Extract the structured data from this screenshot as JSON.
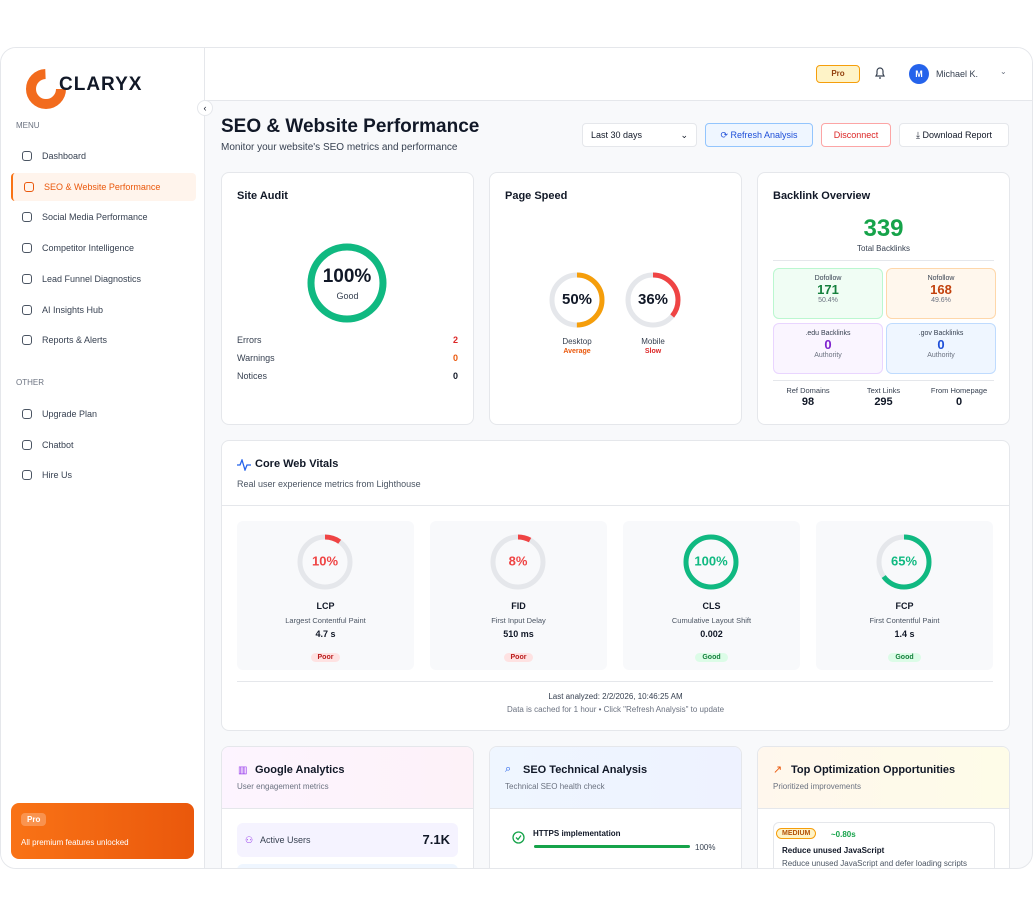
{
  "sidebar": {
    "logo": "CLARYX",
    "menu_label": "MENU",
    "menu": [
      "Dashboard",
      "SEO & Website Performance",
      "Social Media Performance",
      "Competitor Intelligence",
      "Lead Funnel Diagnostics",
      "AI Insights Hub",
      "Reports & Alerts"
    ],
    "active": 1,
    "other_label": "OTHER",
    "other": [
      "Upgrade Plan",
      "Chatbot",
      "Hire Us"
    ],
    "pro_badge": "Pro",
    "pro_text": "All premium features unlocked"
  },
  "topbar": {
    "pro": "Pro",
    "user_initial": "M",
    "user_name": "Michael K."
  },
  "header": {
    "title": "SEO & Website Performance",
    "subtitle": "Monitor your website's SEO metrics and performance",
    "range": "Last 30 days",
    "buttons": [
      "Refresh Analysis",
      "Disconnect",
      "Download Report"
    ]
  },
  "site_audit": {
    "title": "Site Audit",
    "score": {
      "value": 100,
      "label": "100%"
    },
    "color": "#10b981",
    "score_label": "Good",
    "rows": [
      {
        "name": "Errors",
        "value": 2,
        "color": "#dc2626"
      },
      {
        "name": "Warnings",
        "value": 0,
        "color": "#ea580c"
      },
      {
        "name": "Notices",
        "value": 0,
        "color": "#111827"
      }
    ]
  },
  "page_speed": {
    "title": "Page Speed",
    "gauges": [
      {
        "score": {
          "value": 50,
          "label": "50%"
        },
        "device": "Desktop",
        "status": "Average",
        "color": "#f59e0b",
        "status_color": "#ea580c"
      },
      {
        "score": {
          "value": 36,
          "label": "36%"
        },
        "device": "Mobile",
        "status": "Slow",
        "color": "#ef4444",
        "status_color": "#dc2626"
      }
    ]
  },
  "backlinks": {
    "title": "Backlink Overview",
    "total": 339,
    "total_label": "Total Backlinks",
    "boxes": [
      {
        "name": "Dofollow",
        "value": 171,
        "sub": "50.4%"
      },
      {
        "name": "Nofollow",
        "value": 168,
        "sub": "49.6%"
      },
      {
        "name": ".edu Backlinks",
        "value": 0,
        "sub": "Authority"
      },
      {
        "name": ".gov Backlinks",
        "value": 0,
        "sub": "Authority"
      }
    ],
    "stats": [
      {
        "name": "Ref Domains",
        "value": 98
      },
      {
        "name": "Text Links",
        "value": 295
      },
      {
        "name": "From Homepage",
        "value": 0
      }
    ]
  },
  "cwv": {
    "title": "Core Web Vitals",
    "subtitle": "Real user experience metrics from Lighthouse",
    "metrics": [
      {
        "score": {
          "value": 10,
          "label": "10%"
        },
        "color": "#ef4444",
        "name": "LCP",
        "desc": "Largest Contentful Paint",
        "value": "4.7 s",
        "status": "Poor"
      },
      {
        "score": {
          "value": 8,
          "label": "8%"
        },
        "color": "#ef4444",
        "name": "FID",
        "desc": "First Input Delay",
        "value": "510 ms",
        "status": "Poor"
      },
      {
        "score": {
          "value": 100,
          "label": "100%"
        },
        "color": "#10b981",
        "name": "CLS",
        "desc": "Cumulative Layout Shift",
        "value": "0.002",
        "status": "Good"
      },
      {
        "score": {
          "value": 65,
          "label": "65%"
        },
        "color": "#10b981",
        "name": "FCP",
        "desc": "First Contentful Paint",
        "value": "1.4 s",
        "status": "Good"
      }
    ],
    "last_analyzed": "Last analyzed: 2/2/2026, 10:46:25 AM",
    "note": "Data is cached for 1 hour • Click \"Refresh Analysis\" to update"
  },
  "analytics": {
    "title": "Google Analytics",
    "subtitle": "User engagement metrics",
    "rows": [
      {
        "name": "Active Users",
        "value": "7.1K"
      }
    ]
  },
  "seo_tech": {
    "title": "SEO Technical Analysis",
    "subtitle": "Technical SEO health check",
    "checks": [
      {
        "name": "HTTPS implementation",
        "progress": {
          "value": 100,
          "label": "100%"
        }
      }
    ]
  },
  "opportunities": {
    "title": "Top Optimization Opportunities",
    "subtitle": "Prioritized improvements",
    "items": [
      {
        "impact": "MEDIUM",
        "saving": "~0.80s",
        "title": "Reduce unused JavaScript",
        "desc": "Reduce unused JavaScript and defer loading scripts"
      }
    ]
  }
}
